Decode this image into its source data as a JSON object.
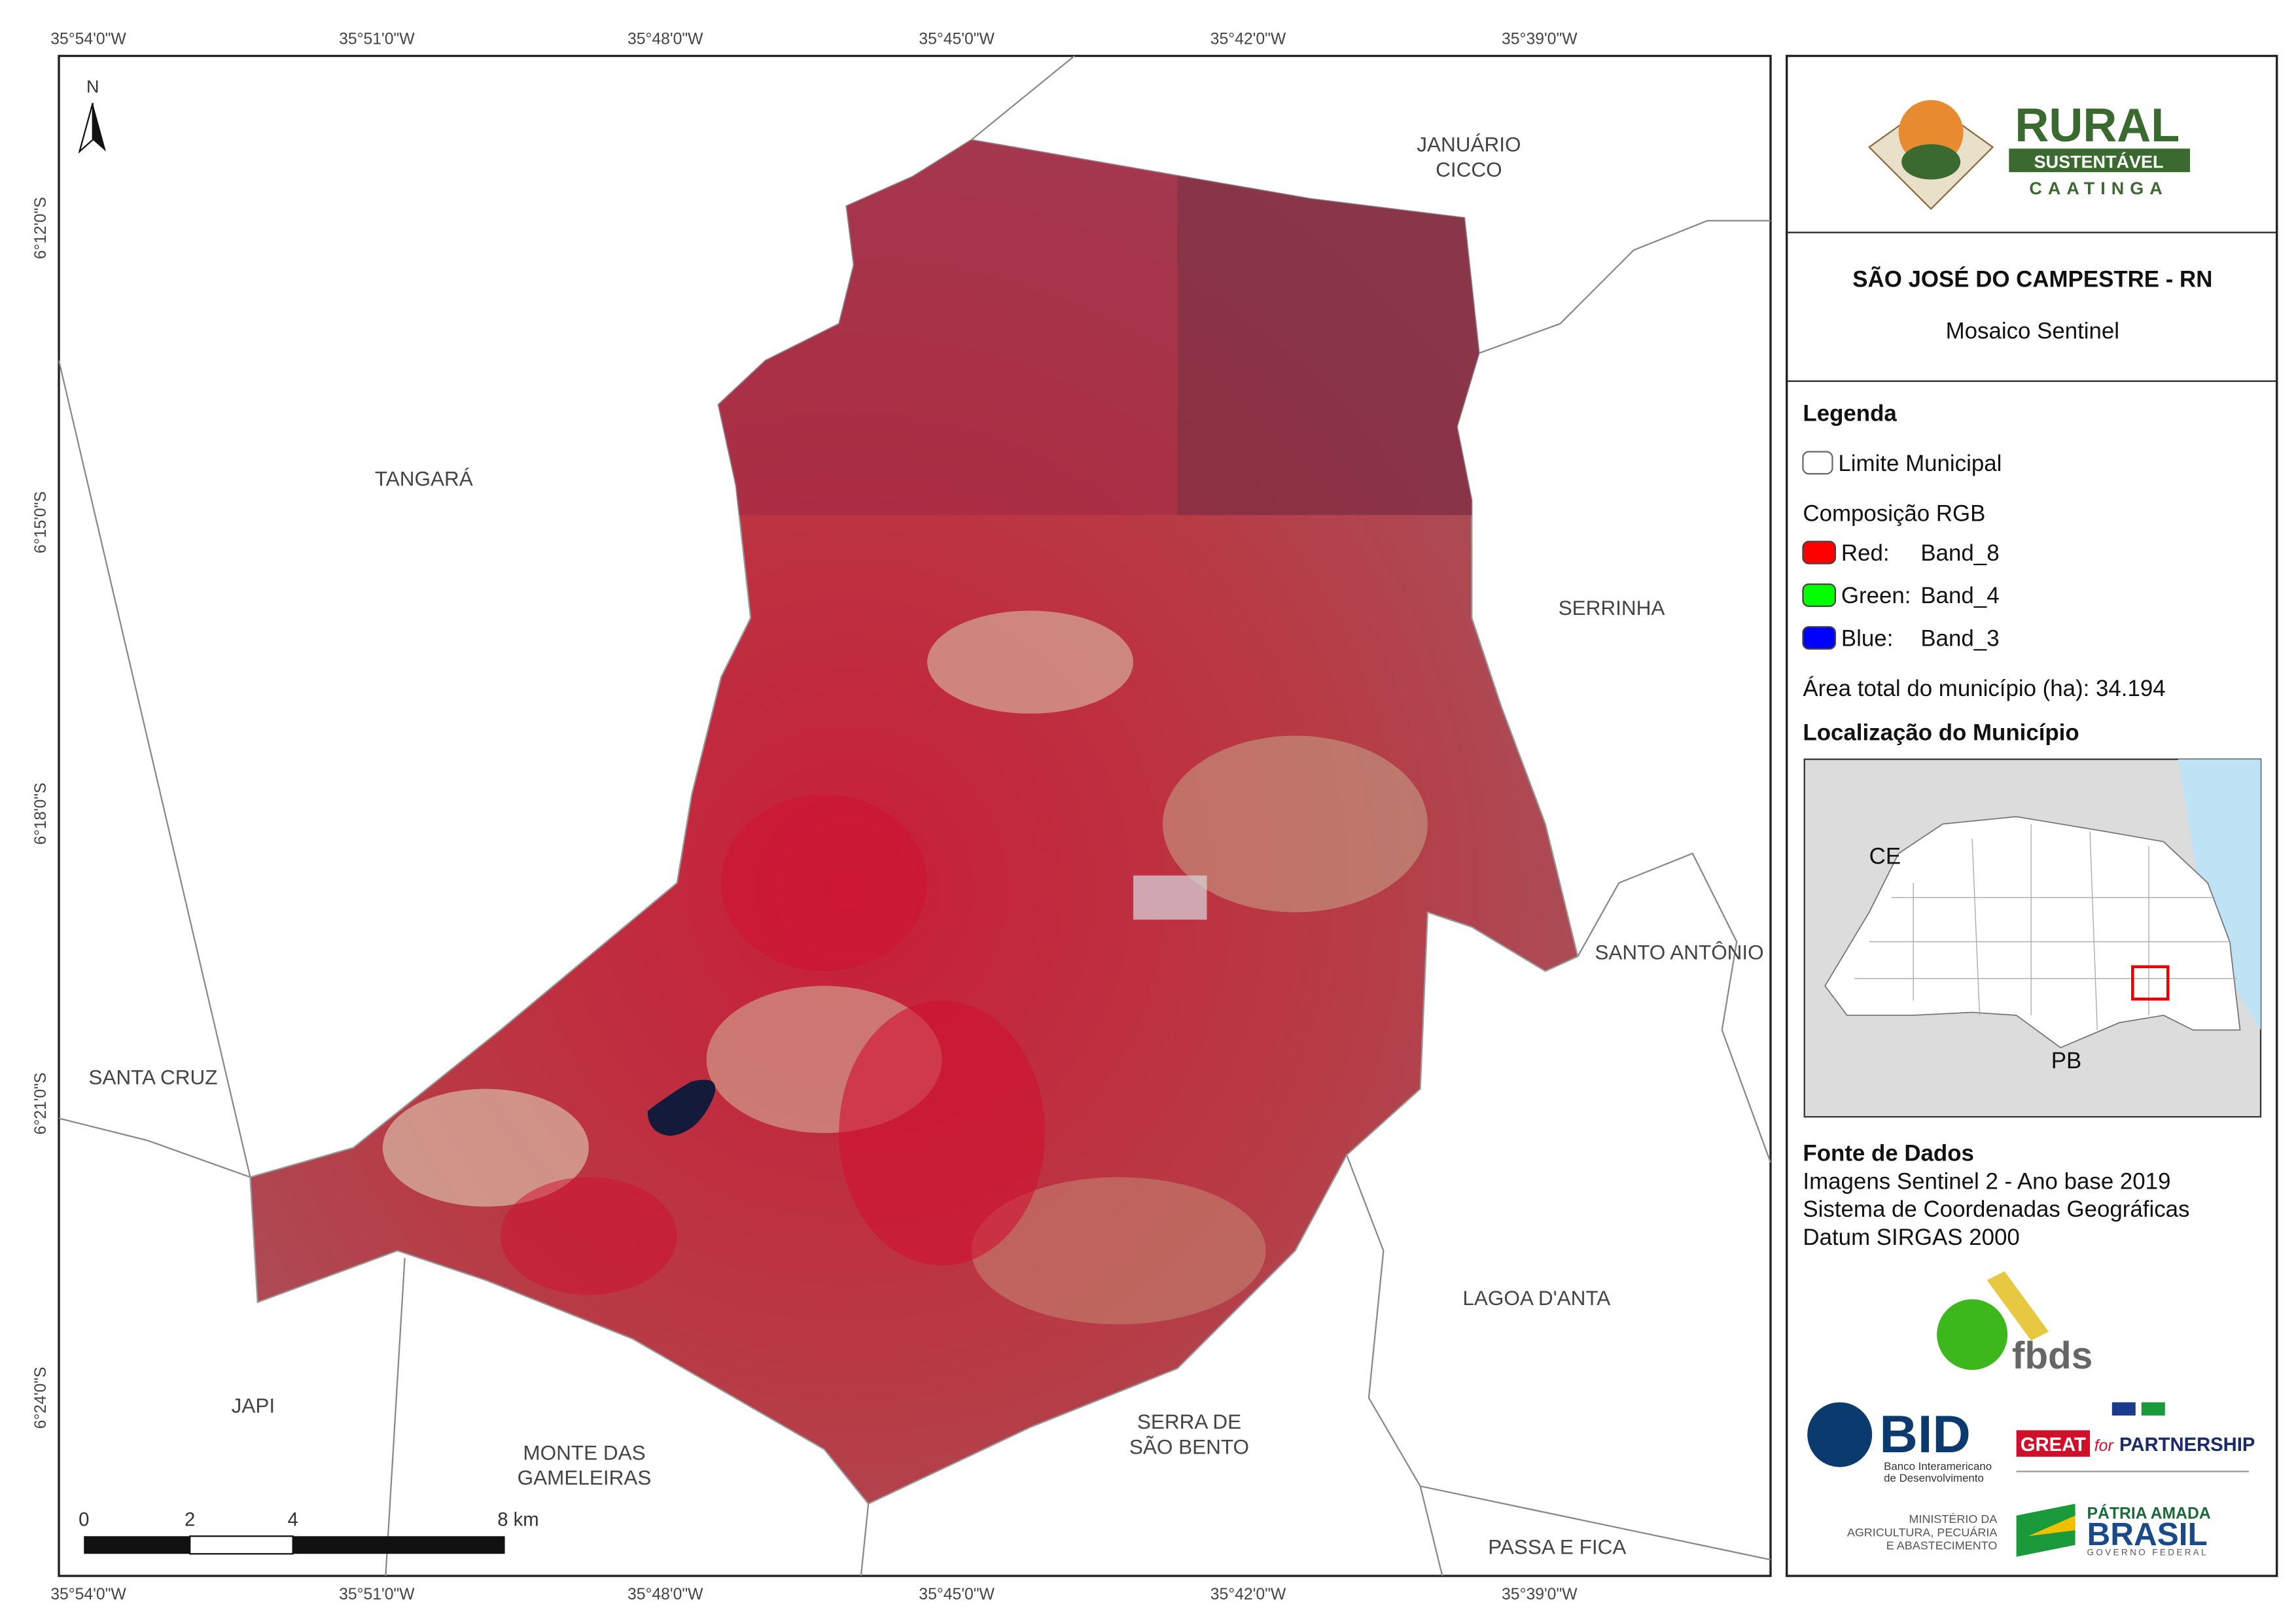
{
  "map_frame": {
    "top_longitudes": [
      "35°54'0\"W",
      "35°51'0\"W",
      "35°48'0\"W",
      "35°45'0\"W",
      "35°42'0\"W",
      "35°39'0\"W"
    ],
    "bottom_longitudes": [
      "35°54'0\"W",
      "35°51'0\"W",
      "35°48'0\"W",
      "35°45'0\"W",
      "35°42'0\"W",
      "35°39'0\"W"
    ],
    "left_latitudes": [
      "6°12'0\"S",
      "6°15'0\"S",
      "6°18'0\"S",
      "6°21'0\"S",
      "6°24'0\"S"
    ],
    "north": "N",
    "scale_labels": [
      "0",
      "2",
      "4",
      "8 km"
    ]
  },
  "places": [
    [
      "TANGARÁ"
    ],
    [
      "JANUÁRIO",
      "CICCO"
    ],
    [
      "SERRINHA"
    ],
    [
      "SANTO ANTÔNIO"
    ],
    [
      "SANTA CRUZ"
    ],
    [
      "JAPI"
    ],
    [
      "MONTE DAS",
      "GAMELEIRAS"
    ],
    [
      "SERRA DE",
      "SÃO BENTO"
    ],
    [
      "LAGOA D'ANTA"
    ],
    [
      "PASSA E FICA"
    ]
  ],
  "panel": {
    "logo": {
      "rural": "RURAL",
      "sustentavel": "SUSTENTÁVEL",
      "caatinga": "CAATINGA"
    },
    "title": "SÃO JOSÉ DO CAMPESTRE - RN",
    "subtitle": "Mosaico Sentinel",
    "legend": {
      "title": "Legenda",
      "boundary": "Limite Municipal",
      "rgb_title": "Composição RGB",
      "bands": [
        {
          "channel": "Red:",
          "band": "Band_8",
          "color": "#ff0000"
        },
        {
          "channel": "Green:",
          "band": "Band_4",
          "color": "#00ff00"
        },
        {
          "channel": "Blue:",
          "band": "Band_3",
          "color": "#0000ff"
        }
      ],
      "area": "Área total do município (ha): 34.194"
    },
    "location": {
      "title": "Localização do Município",
      "labels": [
        "CE",
        "PB"
      ]
    },
    "sources": {
      "title": "Fonte de Dados",
      "lines": [
        "Imagens Sentinel 2 - Ano base 2019",
        "Sistema de Coordenadas Geográficas",
        "Datum SIRGAS 2000"
      ]
    },
    "partners": {
      "fbds": "fbds",
      "bid": "BID",
      "bid_name": [
        "Banco Interamericano",
        "de Desenvolvimento"
      ],
      "great": "GREAT",
      "for": "for",
      "partnership": "PARTNERSHIP",
      "ministry": [
        "MINISTÉRIO DA",
        "AGRICULTURA, PECUÁRIA",
        "E ABASTECIMENTO"
      ],
      "patria": "PÁTRIA AMADA",
      "brasil": "BRASIL",
      "governo": "GOVERNO FEDERAL"
    }
  }
}
